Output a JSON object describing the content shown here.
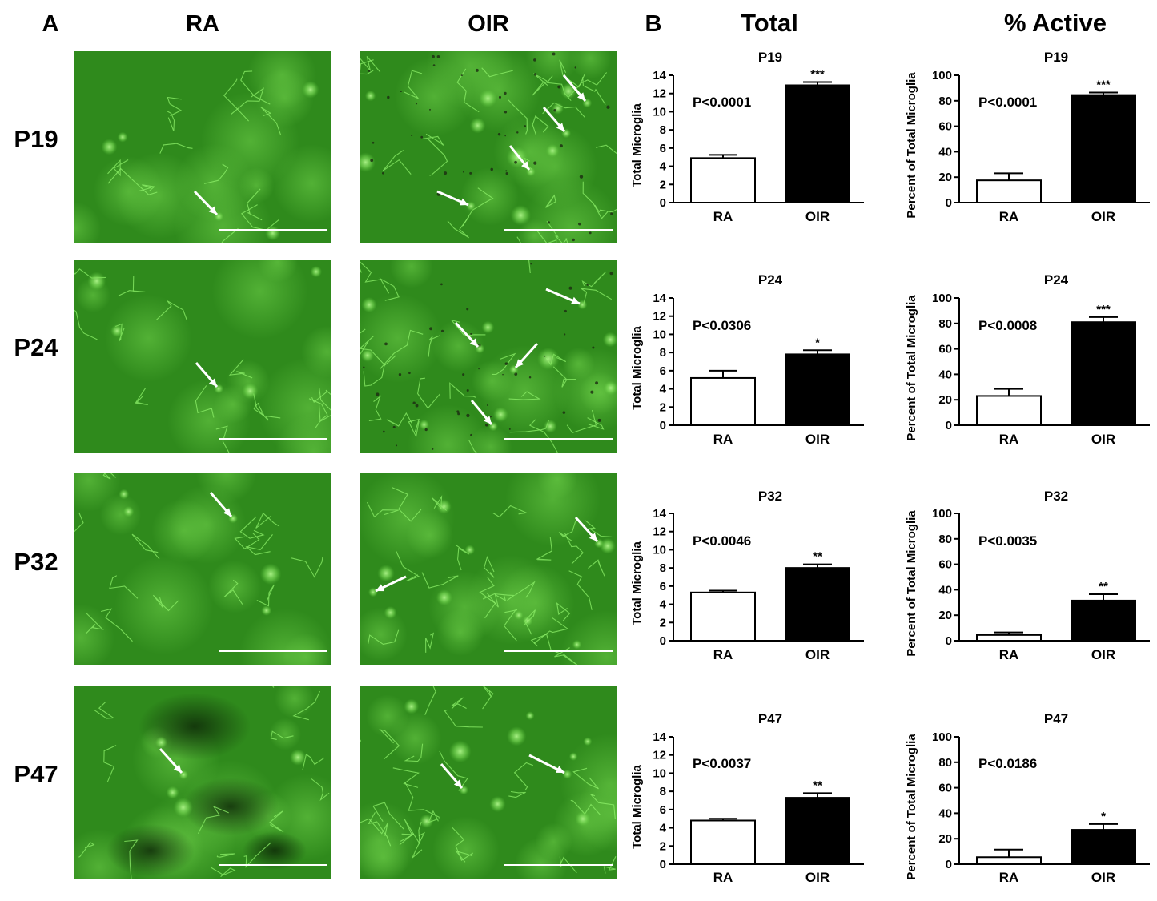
{
  "panel_a": {
    "letter": "A",
    "columns": [
      "RA",
      "OIR"
    ],
    "rows": [
      "P19",
      "P24",
      "P32",
      "P47"
    ],
    "image_colors": {
      "background": "#2f8a1c",
      "cell": "#8ef06a",
      "arrow": "#ffffff",
      "scalebar": "#ffffff",
      "debris": "#1b2a12"
    }
  },
  "panel_b": {
    "letter": "B",
    "column_headers": [
      "Total",
      "% Active"
    ]
  },
  "chart_data": [
    {
      "type": "bar",
      "title": "P19",
      "ylabel": "Total Microglia",
      "ylim": [
        0,
        14
      ],
      "yticks": [
        0,
        2,
        4,
        6,
        8,
        10,
        12,
        14
      ],
      "categories": [
        "RA",
        "OIR"
      ],
      "values": [
        4.9,
        12.9
      ],
      "errors": [
        0.35,
        0.35
      ],
      "bar_colors": [
        "#ffffff",
        "#000000"
      ],
      "p_value": "P<0.0001",
      "significance": [
        "",
        "***"
      ]
    },
    {
      "type": "bar",
      "title": "P19",
      "ylabel": "Percent of Total Microglia",
      "ylim": [
        0,
        100
      ],
      "yticks": [
        0,
        20,
        40,
        60,
        80,
        100
      ],
      "categories": [
        "RA",
        "OIR"
      ],
      "values": [
        17.5,
        84.5
      ],
      "errors": [
        5.5,
        2
      ],
      "bar_colors": [
        "#ffffff",
        "#000000"
      ],
      "p_value": "P<0.0001",
      "significance": [
        "",
        "***"
      ]
    },
    {
      "type": "bar",
      "title": "P24",
      "ylabel": "Total Microglia",
      "ylim": [
        0,
        14
      ],
      "yticks": [
        0,
        2,
        4,
        6,
        8,
        10,
        12,
        14
      ],
      "categories": [
        "RA",
        "OIR"
      ],
      "values": [
        5.2,
        7.8
      ],
      "errors": [
        0.8,
        0.45
      ],
      "bar_colors": [
        "#ffffff",
        "#000000"
      ],
      "p_value": "P<0.0306",
      "significance": [
        "",
        "*"
      ]
    },
    {
      "type": "bar",
      "title": "P24",
      "ylabel": "Percent of Total Microglia",
      "ylim": [
        0,
        100
      ],
      "yticks": [
        0,
        20,
        40,
        60,
        80,
        100
      ],
      "categories": [
        "RA",
        "OIR"
      ],
      "values": [
        23,
        81
      ],
      "errors": [
        5.5,
        4
      ],
      "bar_colors": [
        "#ffffff",
        "#000000"
      ],
      "p_value": "P<0.0008",
      "significance": [
        "",
        "***"
      ]
    },
    {
      "type": "bar",
      "title": "P32",
      "ylabel": "Total Microglia",
      "ylim": [
        0,
        14
      ],
      "yticks": [
        0,
        2,
        4,
        6,
        8,
        10,
        12,
        14
      ],
      "categories": [
        "RA",
        "OIR"
      ],
      "values": [
        5.3,
        8
      ],
      "errors": [
        0.2,
        0.4
      ],
      "bar_colors": [
        "#ffffff",
        "#000000"
      ],
      "p_value": "P<0.0046",
      "significance": [
        "",
        "**"
      ]
    },
    {
      "type": "bar",
      "title": "P32",
      "ylabel": "Percent of Total Microglia",
      "ylim": [
        0,
        100
      ],
      "yticks": [
        0,
        20,
        40,
        60,
        80,
        100
      ],
      "categories": [
        "RA",
        "OIR"
      ],
      "values": [
        4.5,
        31.5
      ],
      "errors": [
        2,
        5
      ],
      "bar_colors": [
        "#ffffff",
        "#000000"
      ],
      "p_value": "P<0.0035",
      "significance": [
        "",
        "**"
      ]
    },
    {
      "type": "bar",
      "title": "P47",
      "ylabel": "Total Microglia",
      "ylim": [
        0,
        14
      ],
      "yticks": [
        0,
        2,
        4,
        6,
        8,
        10,
        12,
        14
      ],
      "categories": [
        "RA",
        "OIR"
      ],
      "values": [
        4.8,
        7.3
      ],
      "errors": [
        0.2,
        0.5
      ],
      "bar_colors": [
        "#ffffff",
        "#000000"
      ],
      "p_value": "P<0.0037",
      "significance": [
        "",
        "**"
      ]
    },
    {
      "type": "bar",
      "title": "P47",
      "ylabel": "Percent of Total Microglia",
      "ylim": [
        0,
        100
      ],
      "yticks": [
        0,
        20,
        40,
        60,
        80,
        100
      ],
      "categories": [
        "RA",
        "OIR"
      ],
      "values": [
        5.5,
        27
      ],
      "errors": [
        6,
        4.5
      ],
      "bar_colors": [
        "#ffffff",
        "#000000"
      ],
      "p_value": "P<0.0186",
      "significance": [
        "",
        "*"
      ]
    }
  ]
}
